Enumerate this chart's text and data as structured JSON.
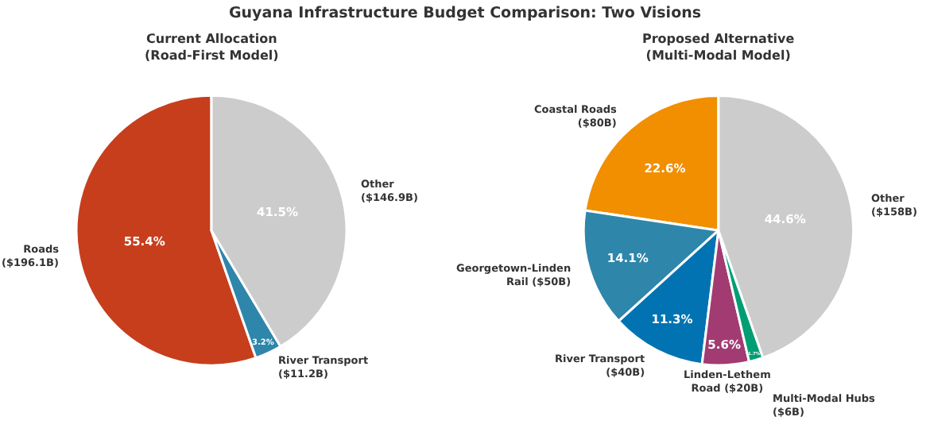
{
  "chart_data": [
    {
      "type": "pie",
      "title": "Guyana Infrastructure Budget Comparison: Two Visions",
      "subtitle": "Current Allocation\n(Road-First Model)",
      "categories": [
        "Roads\n($196.1B)",
        "River Transport\n($11.2B)",
        "Other\n($146.9B)"
      ],
      "values": [
        55.4,
        3.2,
        41.5
      ],
      "colors": [
        "#c73e1d",
        "#2e86ab",
        "#cccccc"
      ],
      "value_labels": [
        "55.4%",
        "3.2%",
        "41.5%"
      ]
    },
    {
      "type": "pie",
      "subtitle": "Proposed Alternative\n(Multi-Modal Model)",
      "categories": [
        "Coastal Roads\n($80B)",
        "Georgetown-Linden\nRail ($50B)",
        "River Transport\n($40B)",
        "Linden-Lethem\nRoad ($20B)",
        "Multi-Modal Hubs\n($6B)",
        "Other\n($158B)"
      ],
      "values": [
        22.6,
        14.1,
        11.3,
        5.6,
        1.7,
        44.6
      ],
      "colors": [
        "#f18f01",
        "#2e86ab",
        "#0173b2",
        "#a23b72",
        "#029e73",
        "#cccccc"
      ],
      "value_labels": [
        "22.6%",
        "14.1%",
        "11.3%",
        "5.6%",
        "1.7%",
        "44.6%"
      ]
    }
  ]
}
